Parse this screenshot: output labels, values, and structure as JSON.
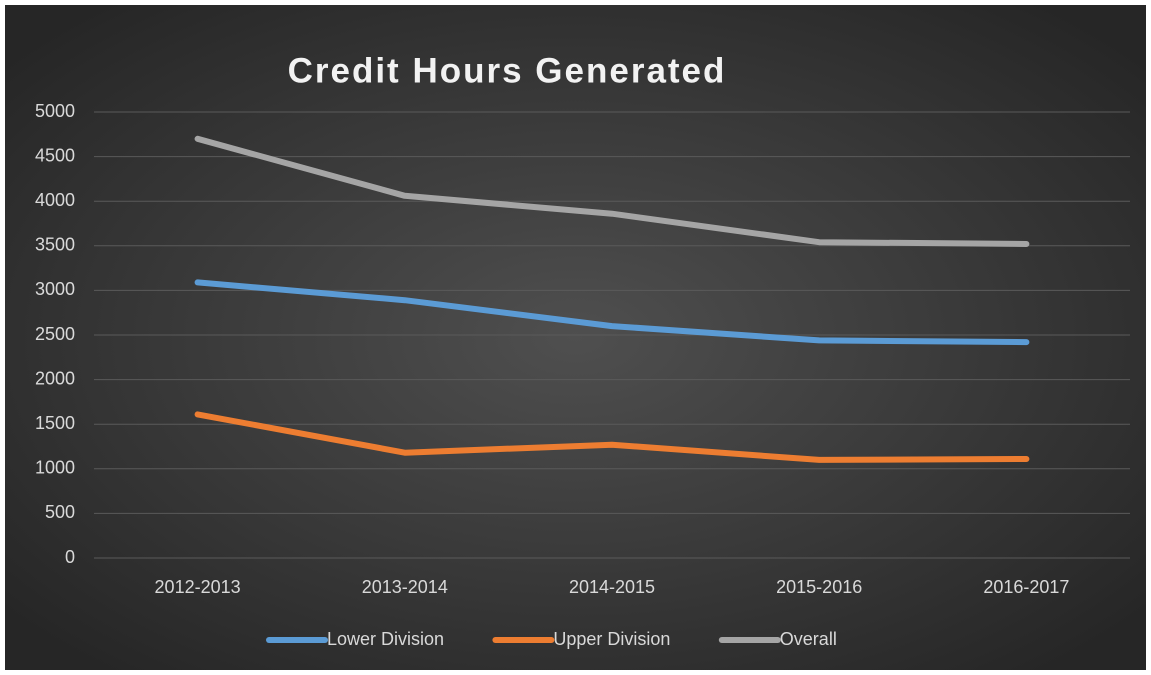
{
  "chart_data": {
    "type": "line",
    "title": "Credit Hours Generated",
    "categories": [
      "2012-2013",
      "2013-2014",
      "2014-2015",
      "2015-2016",
      "2016-2017"
    ],
    "series": [
      {
        "name": "Lower Division",
        "color": "#5b9bd5",
        "values": [
          3090,
          2890,
          2600,
          2440,
          2420
        ]
      },
      {
        "name": "Upper Division",
        "color": "#ed7d31",
        "values": [
          1610,
          1180,
          1270,
          1100,
          1110
        ]
      },
      {
        "name": "Overall",
        "color": "#a5a5a5",
        "values": [
          4700,
          4060,
          3860,
          3540,
          3520
        ]
      }
    ],
    "ylim": [
      0,
      5000
    ],
    "yticks": [
      0,
      500,
      1000,
      1500,
      2000,
      2500,
      3000,
      3500,
      4000,
      4500,
      5000
    ],
    "grid": true,
    "legend": "bottom"
  }
}
